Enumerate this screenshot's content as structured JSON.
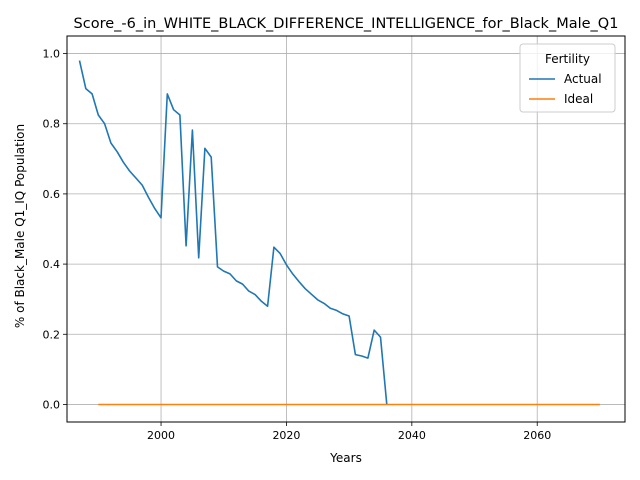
{
  "chart_data": {
    "type": "line",
    "title": "Score_-6_in_WHITE_BLACK_DIFFERENCE_INTELLIGENCE_for_Black_Male_Q1",
    "xlabel": "Years",
    "ylabel": "% of Black_Male Q1_IQ Population",
    "xlim": [
      1985,
      2074
    ],
    "ylim": [
      -0.05,
      1.05
    ],
    "xticks": [
      2000,
      2020,
      2040,
      2060
    ],
    "yticks": [
      0.0,
      0.2,
      0.4,
      0.6,
      0.8,
      1.0
    ],
    "grid": true,
    "legend": {
      "title": "Fertility",
      "placement": "top-right"
    },
    "series": [
      {
        "name": "Actual",
        "color": "#1f77b4",
        "x": [
          1987,
          1988,
          1989,
          1990,
          1991,
          1992,
          1993,
          1994,
          1995,
          1996,
          1997,
          1998,
          1999,
          2000,
          2001,
          2002,
          2003,
          2004,
          2005,
          2006,
          2007,
          2008,
          2009,
          2010,
          2011,
          2012,
          2013,
          2014,
          2015,
          2016,
          2017,
          2018,
          2019,
          2020,
          2021,
          2022,
          2023,
          2024,
          2025,
          2026,
          2027,
          2028,
          2029,
          2030,
          2031,
          2032,
          2033,
          2034,
          2035,
          2036
        ],
        "y": [
          0.98,
          0.9,
          0.885,
          0.825,
          0.8,
          0.745,
          0.72,
          0.69,
          0.665,
          0.645,
          0.625,
          0.59,
          0.558,
          0.532,
          0.885,
          0.84,
          0.825,
          0.452,
          0.782,
          0.418,
          0.73,
          0.705,
          0.392,
          0.38,
          0.372,
          0.352,
          0.343,
          0.323,
          0.313,
          0.294,
          0.28,
          0.448,
          0.43,
          0.398,
          0.372,
          0.35,
          0.33,
          0.314,
          0.298,
          0.288,
          0.274,
          0.268,
          0.258,
          0.252,
          0.142,
          0.138,
          0.132,
          0.212,
          0.192,
          0.0
        ]
      },
      {
        "name": "Ideal",
        "color": "#ff7f0e",
        "x": [
          1990,
          2070
        ],
        "y": [
          0.0,
          0.0
        ]
      }
    ]
  }
}
